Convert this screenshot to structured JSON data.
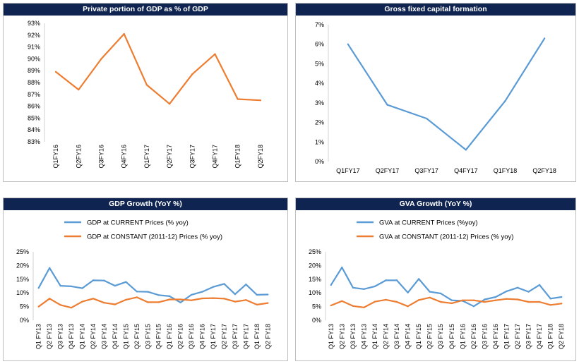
{
  "chart_data": [
    {
      "id": "c1",
      "type": "line",
      "title": "Private portion of GDP as % of GDP",
      "categories": [
        "Q1FY16",
        "Q2FY16",
        "Q3FY16",
        "Q4FY16",
        "Q1FY17",
        "Q2FY17",
        "Q3FY17",
        "Q4FY17",
        "Q1FY18",
        "Q2FY18"
      ],
      "series": [
        {
          "name": "Private portion of GDP",
          "color": "#ed7d31",
          "values": [
            88.9,
            87.4,
            90.0,
            92.1,
            87.8,
            86.2,
            88.7,
            90.4,
            86.6,
            86.5
          ]
        }
      ],
      "ylim": [
        83,
        93
      ],
      "yticks": [
        83,
        84,
        85,
        86,
        87,
        88,
        89,
        90,
        91,
        92,
        93
      ],
      "ytick_labels": [
        "83%",
        "84%",
        "85%",
        "86%",
        "87%",
        "88%",
        "89%",
        "90%",
        "91%",
        "92%",
        "93%"
      ],
      "legend": []
    },
    {
      "id": "c2",
      "type": "line",
      "title": "Gross fixed capital formation",
      "categories": [
        "Q1FY17",
        "Q2FY17",
        "Q3FY17",
        "Q4FY17",
        "Q1FY18",
        "Q2FY18"
      ],
      "series": [
        {
          "name": "Gross fixed capital formation",
          "color": "#5b9bd5",
          "values": [
            6.0,
            2.9,
            2.2,
            0.6,
            3.1,
            6.3
          ]
        }
      ],
      "ylim": [
        0,
        7
      ],
      "yticks": [
        0,
        1,
        2,
        3,
        4,
        5,
        6,
        7
      ],
      "ytick_labels": [
        "0%",
        "1%",
        "2%",
        "3%",
        "4%",
        "5%",
        "6%",
        "7%"
      ],
      "legend": []
    },
    {
      "id": "c3",
      "type": "line",
      "title": "GDP Growth (YoY %)",
      "categories": [
        "Q1 FY13",
        "Q2 FY13",
        "Q3 FY13",
        "Q4 FY13",
        "Q1 FY14",
        "Q2 FY14",
        "Q3 FY14",
        "Q4 FY14",
        "Q1 FY15",
        "Q2 FY15",
        "Q3 FY15",
        "Q4 FY15",
        "Q1 FY16",
        "Q2 FY16",
        "Q3 FY16",
        "Q4 FY16",
        "Q1 FY17",
        "Q2 FY17",
        "Q3 FY17",
        "Q4 FY17",
        "Q1 FY18",
        "Q2 FY18"
      ],
      "series": [
        {
          "name": "GDP at CURRENT Prices (% yoy)",
          "color": "#5b9bd5",
          "values": [
            11.8,
            19.1,
            12.6,
            12.4,
            11.7,
            14.6,
            14.5,
            12.6,
            14.0,
            10.5,
            10.4,
            9.2,
            8.8,
            6.5,
            9.3,
            10.4,
            12.2,
            13.3,
            9.5,
            13.1,
            9.3,
            9.4
          ]
        },
        {
          "name": "GDP at CONSTANT (2011-12) Prices (% yoy)",
          "color": "#ed7d31",
          "values": [
            5.0,
            7.9,
            5.6,
            4.6,
            6.8,
            7.9,
            6.4,
            5.8,
            7.5,
            8.4,
            6.6,
            6.6,
            7.6,
            7.6,
            7.3,
            8.0,
            8.1,
            7.9,
            6.8,
            7.4,
            5.7,
            6.3
          ]
        }
      ],
      "ylim": [
        0,
        25
      ],
      "yticks": [
        0,
        5,
        10,
        15,
        20,
        25
      ],
      "ytick_labels": [
        "0%",
        "5%",
        "10%",
        "15%",
        "20%",
        "25%"
      ],
      "legend": [
        "GDP at CURRENT Prices (% yoy)",
        "GDP at CONSTANT (2011-12) Prices (% yoy)"
      ]
    },
    {
      "id": "c4",
      "type": "line",
      "title": "GVA Growth (YoY %)",
      "categories": [
        "Q1 FY13",
        "Q2 FY13",
        "Q3 FY13",
        "Q4 FY13",
        "Q1 FY14",
        "Q2 FY14",
        "Q3 FY14",
        "Q4 FY14",
        "Q1 FY15",
        "Q2 FY15",
        "Q3 FY15",
        "Q4 FY15",
        "Q1 FY16",
        "Q2 FY16",
        "Q3 FY16",
        "Q4 FY16",
        "Q1 FY17",
        "Q2 FY17",
        "Q3 FY17",
        "Q4 FY17",
        "Q1 FY18",
        "Q2 FY18"
      ],
      "series": [
        {
          "name": "GVA at CURRENT Prices (%yoy)",
          "color": "#5b9bd5",
          "values": [
            12.9,
            19.3,
            11.9,
            11.4,
            12.4,
            14.6,
            14.6,
            10.1,
            15.1,
            10.4,
            9.8,
            7.3,
            7.1,
            5.1,
            7.6,
            8.5,
            10.6,
            11.9,
            10.4,
            12.9,
            7.9,
            8.5
          ]
        },
        {
          "name": "GVA at CONSTANT (2011-12) Prices (% yoy)",
          "color": "#ed7d31",
          "values": [
            5.4,
            7.0,
            5.2,
            4.7,
            6.8,
            7.5,
            6.7,
            5.1,
            7.4,
            8.3,
            6.7,
            6.2,
            7.3,
            7.3,
            6.7,
            7.3,
            7.8,
            7.6,
            6.7,
            6.7,
            5.6,
            6.1
          ]
        }
      ],
      "ylim": [
        0,
        25
      ],
      "yticks": [
        0,
        5,
        10,
        15,
        20,
        25
      ],
      "ytick_labels": [
        "0%",
        "5%",
        "10%",
        "15%",
        "20%",
        "25%"
      ],
      "legend": [
        "GVA at CURRENT Prices (%yoy)",
        "GVA at CONSTANT (2011-12) Prices (% yoy)"
      ]
    }
  ]
}
